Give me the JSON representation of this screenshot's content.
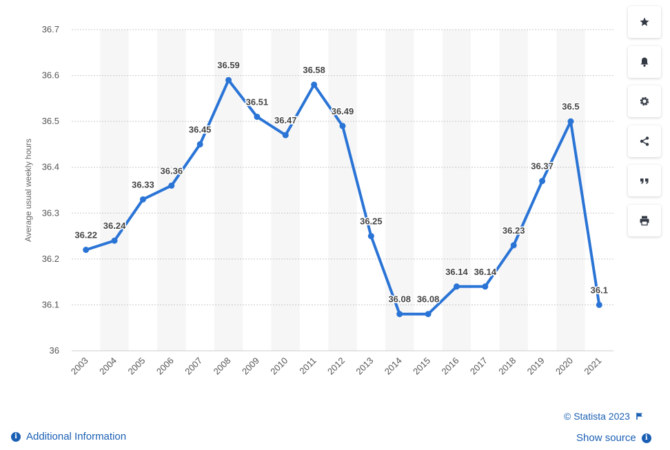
{
  "chart_data": {
    "type": "line",
    "categories": [
      "2003",
      "2004",
      "2005",
      "2006",
      "2007",
      "2008",
      "2009",
      "2010",
      "2011",
      "2012",
      "2013",
      "2014",
      "2015",
      "2016",
      "2017",
      "2018",
      "2019",
      "2020",
      "2021"
    ],
    "series": [
      {
        "values": [
          36.22,
          36.24,
          36.33,
          36.36,
          36.45,
          36.59,
          36.51,
          36.47,
          36.58,
          36.49,
          36.25,
          36.08,
          36.08,
          36.14,
          36.14,
          36.23,
          36.37,
          36.5,
          36.1
        ],
        "labels": [
          "36.22",
          "36.24",
          "36.33",
          "36.36",
          "36.45",
          "36.59",
          "36.51",
          "36.47",
          "36.58",
          "36.49",
          "36.25",
          "36.08",
          "36.08",
          "36.14",
          "36.14",
          "36.23",
          "36.37",
          "36.5",
          "36.1"
        ]
      }
    ],
    "yticks": [
      "36",
      "36.1",
      "36.2",
      "36.3",
      "36.4",
      "36.5",
      "36.6",
      "36.7"
    ],
    "ylim": [
      36,
      36.7
    ],
    "ylabel": "Average usual weekly hours",
    "xlabel": "",
    "grid": true,
    "line_color": "#2a74d6",
    "band_color": "#f6f6f6"
  },
  "toolbar": {
    "items": [
      {
        "name": "star-icon"
      },
      {
        "name": "bell-icon"
      },
      {
        "name": "gear-icon"
      },
      {
        "name": "share-icon"
      },
      {
        "name": "quote-icon"
      },
      {
        "name": "print-icon"
      }
    ]
  },
  "footer": {
    "copyright": "© Statista 2023",
    "additional_info": "Additional Information",
    "show_source": "Show source"
  }
}
